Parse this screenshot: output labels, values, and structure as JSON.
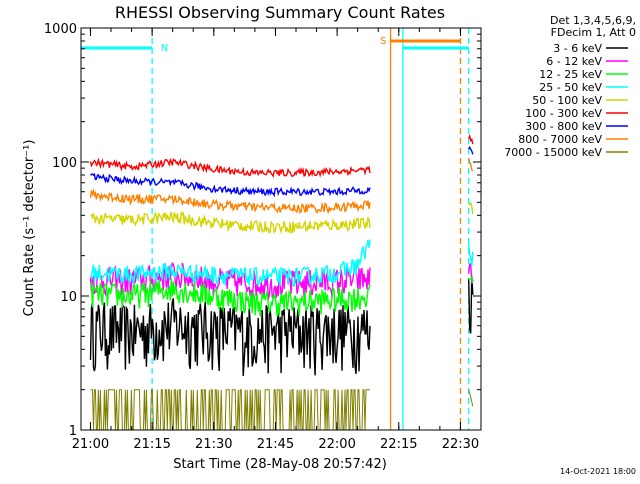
{
  "chart_data": {
    "type": "line",
    "title": "RHESSI Observing Summary Count Rates",
    "xlabel": "Start Time (28-May-08 20:57:42)",
    "ylabel": "Count Rate (s⁻¹ detector⁻¹)",
    "yscale": "log",
    "ylim": [
      1,
      1000
    ],
    "y_ticks": [
      {
        "value": 1,
        "label": "1"
      },
      {
        "value": 10,
        "label": "10"
      },
      {
        "value": 100,
        "label": "100"
      },
      {
        "value": 1000,
        "label": "1000"
      }
    ],
    "xlim": [
      "20:57:42",
      "22:35:00"
    ],
    "x_ticks": [
      "21:00",
      "21:15",
      "21:30",
      "21:45",
      "22:00",
      "22:15",
      "22:30"
    ],
    "legend_header": [
      "Det 1,3,4,5,6,9,",
      "FDecim 1, Att 0"
    ],
    "legend_position": "right",
    "series": [
      {
        "name": "3 - 6 keV",
        "color": "#000000",
        "segments": [
          {
            "x": [
              "21:00",
              "21:10",
              "21:20",
              "21:30",
              "21:40",
              "21:50",
              "22:00",
              "22:08"
            ],
            "y": [
              6,
              5.5,
              6.3,
              5.8,
              5.5,
              5.6,
              5.7,
              5.8
            ]
          },
          {
            "x": [
              "22:32",
              "22:33"
            ],
            "y": [
              11,
              10
            ]
          }
        ]
      },
      {
        "name": "6 - 12 keV",
        "color": "#ff00ff",
        "segments": [
          {
            "x": [
              "21:00",
              "21:10",
              "21:20",
              "21:30",
              "21:40",
              "21:50",
              "22:00",
              "22:08"
            ],
            "y": [
              13.5,
              13,
              14.5,
              13,
              12.5,
              12.5,
              13,
              13.5
            ]
          },
          {
            "x": [
              "22:32",
              "22:33"
            ],
            "y": [
              17,
              15
            ]
          }
        ]
      },
      {
        "name": "12 - 25 keV",
        "color": "#00ff00",
        "segments": [
          {
            "x": [
              "21:00",
              "21:10",
              "21:20",
              "21:30",
              "21:40",
              "21:50",
              "22:00",
              "22:08"
            ],
            "y": [
              10.5,
              10,
              11.5,
              10,
              9,
              9,
              9.5,
              10
            ]
          },
          {
            "x": [
              "22:32",
              "22:33"
            ],
            "y": [
              14,
              13
            ]
          }
        ]
      },
      {
        "name": "25 - 50 keV",
        "color": "#00ffff",
        "segments": [
          {
            "x": [
              "21:00",
              "21:10",
              "21:20",
              "21:30",
              "21:40",
              "21:50",
              "22:00",
              "22:05",
              "22:08"
            ],
            "y": [
              15,
              14.5,
              15.5,
              14.5,
              14,
              14,
              15,
              17,
              25
            ]
          },
          {
            "x": [
              "22:32",
              "22:33"
            ],
            "y": [
              22,
              19
            ]
          }
        ]
      },
      {
        "name": "50 - 100 keV",
        "color": "#d4d400",
        "segments": [
          {
            "x": [
              "21:00",
              "21:10",
              "21:20",
              "21:30",
              "21:40",
              "21:50",
              "22:00",
              "22:08"
            ],
            "y": [
              38,
              37,
              39,
              35,
              33,
              33,
              34,
              35
            ]
          },
          {
            "x": [
              "22:32",
              "22:33"
            ],
            "y": [
              50,
              45
            ]
          }
        ]
      },
      {
        "name": "100 - 300 keV",
        "color": "#ff0000",
        "segments": [
          {
            "x": [
              "21:00",
              "21:10",
              "21:20",
              "21:30",
              "21:40",
              "21:50",
              "22:00",
              "22:08"
            ],
            "y": [
              100,
              92,
              100,
              88,
              83,
              83,
              85,
              88
            ]
          },
          {
            "x": [
              "22:32",
              "22:33"
            ],
            "y": [
              150,
              140
            ]
          }
        ]
      },
      {
        "name": "300 - 800 keV",
        "color": "#0000ff",
        "segments": [
          {
            "x": [
              "21:00",
              "21:10",
              "21:20",
              "21:30",
              "21:40",
              "21:50",
              "22:00",
              "22:08"
            ],
            "y": [
              78,
              72,
              70,
              63,
              60,
              60,
              60,
              62
            ]
          },
          {
            "x": [
              "22:32",
              "22:33"
            ],
            "y": [
              125,
              118
            ]
          }
        ]
      },
      {
        "name": "800 - 7000 keV",
        "color": "#ff8000",
        "segments": [
          {
            "x": [
              "21:00",
              "21:10",
              "21:20",
              "21:30",
              "21:40",
              "21:50",
              "22:00",
              "22:08"
            ],
            "y": [
              57,
              53,
              53,
              48,
              46,
              45,
              46,
              48
            ]
          },
          {
            "x": [
              "22:32",
              "22:33"
            ],
            "y": [
              100,
              92
            ]
          }
        ]
      },
      {
        "name": "7000 - 15000 keV",
        "color": "#808000",
        "segments": [
          {
            "x": [
              "21:00",
              "21:15",
              "21:30",
              "21:45",
              "22:00",
              "22:08"
            ],
            "y": [
              2,
              2,
              2,
              2,
              2,
              2
            ]
          },
          {
            "x": [
              "22:32",
              "22:33"
            ],
            "y": [
              2,
              1.5
            ]
          }
        ]
      }
    ],
    "annotations": [
      {
        "text": "N",
        "color": "#00ffff"
      },
      {
        "text": "S",
        "color": "#ff8000"
      }
    ],
    "flag_bars": [
      {
        "label": "N",
        "color": "#00ffff",
        "x": [
          "20:57:42",
          "21:15"
        ]
      },
      {
        "label": "S",
        "color": "#ff8000",
        "x": [
          "22:13",
          "22:30"
        ]
      },
      {
        "label": "",
        "color": "#00ffff",
        "x": [
          "22:16",
          "22:32"
        ]
      }
    ],
    "vertical_markers": [
      {
        "x": "21:15",
        "color": "#00ffff",
        "style": "dashed"
      },
      {
        "x": "22:13",
        "color": "#ff8000",
        "style": "solid"
      },
      {
        "x": "22:16",
        "color": "#00ffff",
        "style": "solid"
      },
      {
        "x": "22:30",
        "color": "#ff8000",
        "style": "dashed"
      },
      {
        "x": "22:32",
        "color": "#00ffff",
        "style": "dashed"
      }
    ]
  },
  "footer": {
    "date_stamp": "14-Oct-2021 18:00"
  }
}
